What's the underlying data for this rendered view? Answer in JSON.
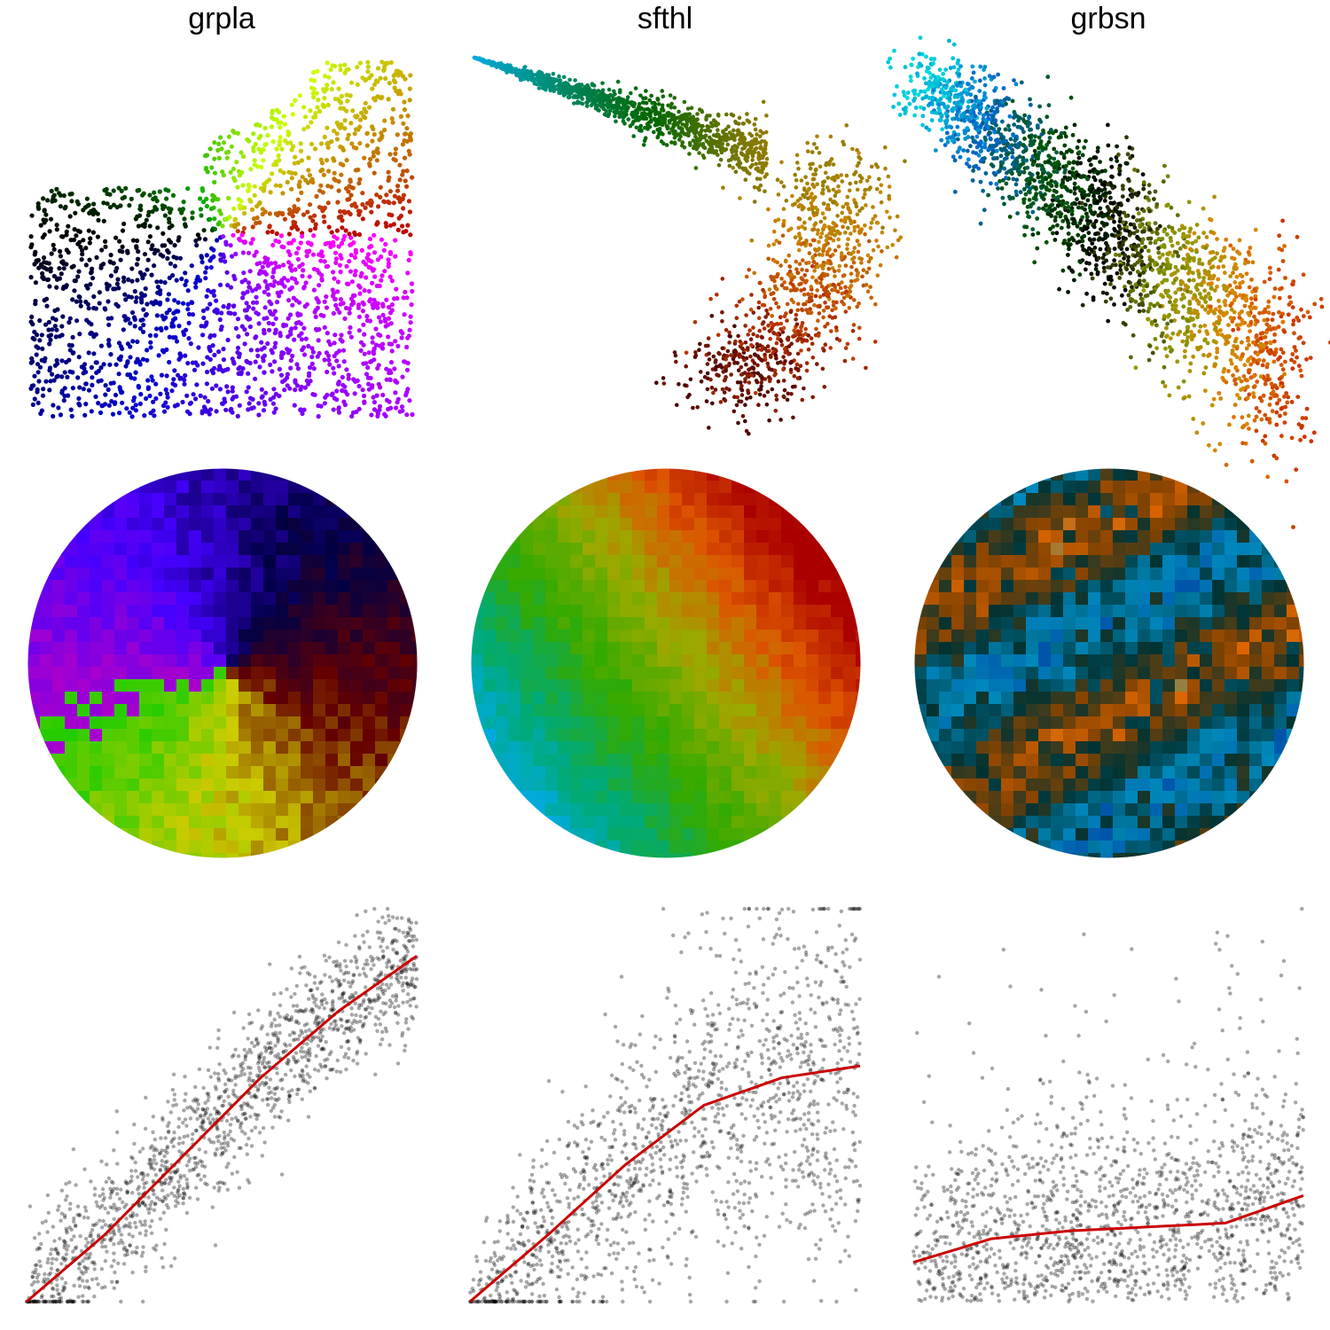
{
  "chart_data": [
    {
      "panel": "grpla",
      "title": "grpla",
      "xlabel": "",
      "ylabel": "",
      "rows": [
        {
          "type": "scatter",
          "content": "2D embedding with colored points",
          "color_map": [
            "#ff00ff",
            "#8800ff",
            "#0000cc",
            "#000000",
            "#00aa00",
            "#ccff00",
            "#bb0000"
          ]
        },
        {
          "type": "heatmap",
          "content": "circular spatial colored map",
          "colors": [
            "#aa00cc",
            "#4400ff",
            "#000044",
            "#660000",
            "#cccc00",
            "#22cc00"
          ]
        },
        {
          "type": "scatter",
          "content": "dense positive scatter with red smooth fit",
          "trend": [
            [
              0.0,
              0.0
            ],
            [
              0.2,
              0.17
            ],
            [
              0.4,
              0.37
            ],
            [
              0.6,
              0.57
            ],
            [
              0.8,
              0.74
            ],
            [
              1.0,
              0.88
            ]
          ],
          "trend_color": "#cc0000"
        }
      ]
    },
    {
      "panel": "sfthl",
      "title": "sfthl",
      "xlabel": "",
      "ylabel": "",
      "rows": [
        {
          "type": "scatter",
          "content": "curved embedding",
          "color_map": [
            "#00aadd",
            "#008866",
            "#006600",
            "#777700",
            "#cc8800",
            "#bb3300",
            "#440000"
          ]
        },
        {
          "type": "heatmap",
          "content": "circular spatial colored map",
          "colors": [
            "#00aaee",
            "#00aa77",
            "#33aa00",
            "#99aa00",
            "#dd5500",
            "#aa0000"
          ]
        },
        {
          "type": "scatter",
          "content": "saturating scatter with red smooth fit",
          "trend": [
            [
              0.0,
              0.0
            ],
            [
              0.2,
              0.17
            ],
            [
              0.4,
              0.35
            ],
            [
              0.6,
              0.5
            ],
            [
              0.8,
              0.57
            ],
            [
              1.0,
              0.6
            ]
          ],
          "trend_color": "#cc0000"
        }
      ]
    },
    {
      "panel": "grbsn",
      "title": "grbsn",
      "xlabel": "",
      "ylabel": "",
      "rows": [
        {
          "type": "scatter",
          "content": "diagonal embedding",
          "color_map": [
            "#00dddd",
            "#0066cc",
            "#005500",
            "#000000",
            "#889900",
            "#dd8800",
            "#cc3300"
          ]
        },
        {
          "type": "heatmap",
          "content": "circular spatial colored map",
          "colors": [
            "#0055aa",
            "#0088bb",
            "#003333",
            "#884400",
            "#dd6600",
            "#22aaaa"
          ]
        },
        {
          "type": "scatter",
          "content": "weak scatter with red smooth fit",
          "trend": [
            [
              0.0,
              0.1
            ],
            [
              0.2,
              0.16
            ],
            [
              0.4,
              0.18
            ],
            [
              0.6,
              0.19
            ],
            [
              0.8,
              0.2
            ],
            [
              1.0,
              0.27
            ]
          ],
          "trend_color": "#cc0000"
        }
      ]
    }
  ]
}
